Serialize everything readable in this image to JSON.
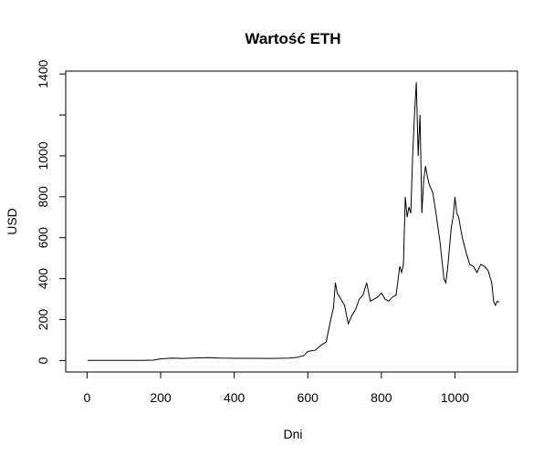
{
  "chart_data": {
    "type": "line",
    "title": "Wartość ETH",
    "x_label": "Dni",
    "y_label": "USD",
    "x": [
      1,
      50,
      100,
      150,
      180,
      200,
      230,
      260,
      300,
      330,
      360,
      400,
      450,
      500,
      550,
      570,
      590,
      600,
      620,
      640,
      650,
      660,
      670,
      675,
      680,
      690,
      700,
      710,
      720,
      730,
      740,
      750,
      760,
      770,
      780,
      790,
      800,
      810,
      820,
      830,
      840,
      850,
      855,
      860,
      865,
      870,
      875,
      880,
      885,
      890,
      895,
      900,
      905,
      910,
      915,
      920,
      925,
      930,
      940,
      950,
      960,
      970,
      975,
      980,
      990,
      995,
      1000,
      1005,
      1010,
      1020,
      1030,
      1040,
      1050,
      1060,
      1070,
      1080,
      1090,
      1100,
      1105,
      1110,
      1115,
      1120
    ],
    "values": [
      1,
      1,
      1,
      1,
      2,
      8,
      12,
      10,
      13,
      14,
      12,
      11,
      11,
      10,
      12,
      15,
      25,
      45,
      50,
      80,
      90,
      180,
      260,
      380,
      330,
      300,
      270,
      180,
      220,
      250,
      300,
      320,
      380,
      290,
      300,
      310,
      330,
      300,
      290,
      310,
      320,
      460,
      430,
      470,
      800,
      700,
      750,
      720,
      1000,
      1200,
      1360,
      1000,
      1200,
      720,
      880,
      950,
      900,
      860,
      820,
      700,
      570,
      400,
      380,
      450,
      650,
      700,
      800,
      720,
      700,
      600,
      530,
      470,
      460,
      430,
      470,
      460,
      440,
      380,
      290,
      270,
      290,
      285
    ],
    "color": "#000000",
    "xlim": [
      -58,
      1170
    ],
    "ylim": [
      -56,
      1414
    ],
    "xticks": [
      0,
      200,
      400,
      600,
      800,
      1000
    ],
    "yticks": [
      0,
      200,
      400,
      600,
      800,
      1000,
      {
        "value": 1200,
        "label": null
      },
      1400
    ]
  }
}
